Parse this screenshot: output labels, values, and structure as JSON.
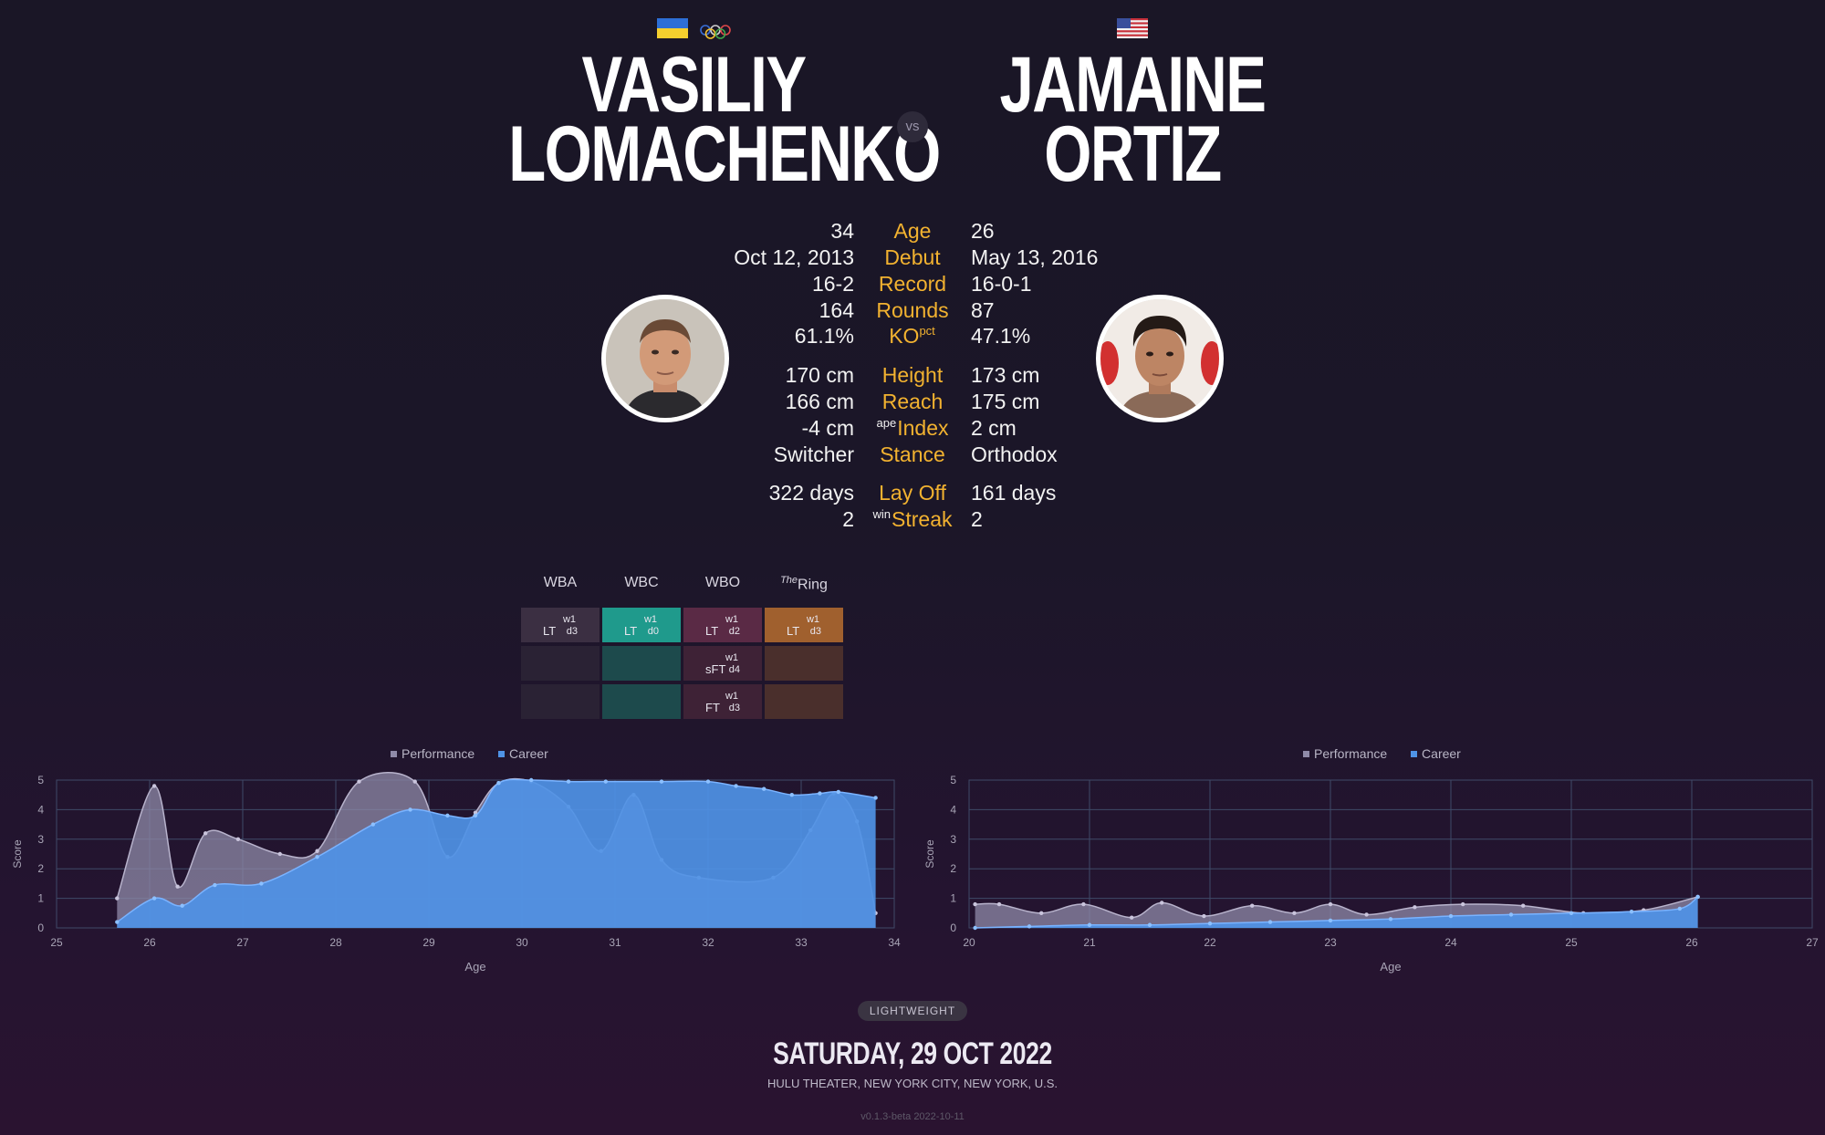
{
  "fighters": {
    "left": {
      "first_name": "VASILIY",
      "last_name": "LOMACHENKO",
      "flag": "ukraine-flag",
      "extra_badge": "olympic-rings",
      "age": "34",
      "debut": "Oct 12, 2013",
      "record": "16-2",
      "rounds": "164",
      "ko_pct": "61.1%",
      "height": "170 cm",
      "reach": "166 cm",
      "ape_index": "-4 cm",
      "stance": "Switcher",
      "lay_off": "322 days",
      "win_streak": "2"
    },
    "right": {
      "first_name": "JAMAINE",
      "last_name": "ORTIZ",
      "flag": "usa-flag",
      "age": "26",
      "debut": "May 13, 2016",
      "record": "16-0-1",
      "rounds": "87",
      "ko_pct": "47.1%",
      "height": "173 cm",
      "reach": "175 cm",
      "ape_index": "2 cm",
      "stance": "Orthodox",
      "lay_off": "161 days",
      "win_streak": "2"
    }
  },
  "vs_label": "vs",
  "labels": {
    "age": "Age",
    "debut": "Debut",
    "record": "Record",
    "rounds": "Rounds",
    "ko": "KO",
    "ko_sup": "pct",
    "height": "Height",
    "reach": "Reach",
    "index": "Index",
    "index_sup": "ape",
    "stance": "Stance",
    "lay_off": "Lay Off",
    "streak": "Streak",
    "streak_sup": "win"
  },
  "belts": {
    "headers": [
      "WBA",
      "WBC",
      "WBO",
      "Ring"
    ],
    "ring_prefix": "The",
    "colors": {
      "wba": "#3b2f42",
      "wbc": "#1f9a8c",
      "wbo": "#5a2a45",
      "ring": "#a0602e"
    },
    "rows": [
      {
        "wba": {
          "div": "LT",
          "w": "w1",
          "d": "d3"
        },
        "wbc": {
          "div": "LT",
          "w": "w1",
          "d": "d0"
        },
        "wbo": {
          "div": "LT",
          "w": "w1",
          "d": "d2"
        },
        "ring": {
          "div": "LT",
          "w": "w1",
          "d": "d3"
        }
      },
      {
        "wbo": {
          "div": "sFT",
          "w": "w1",
          "d": "d4"
        }
      },
      {
        "wbo": {
          "div": "FT",
          "w": "w1",
          "d": "d3"
        }
      }
    ]
  },
  "chart_data": [
    {
      "type": "area",
      "fighter": "VASILIY LOMACHENKO",
      "xlabel": "Age",
      "ylabel": "Score",
      "xlim": [
        25,
        34
      ],
      "ylim": [
        0,
        5
      ],
      "xticks": [
        25,
        26,
        27,
        28,
        29,
        30,
        31,
        32,
        33,
        34
      ],
      "yticks": [
        0,
        1,
        2,
        3,
        4,
        5
      ],
      "legend": [
        "Performance",
        "Career"
      ],
      "legend_position": "top",
      "grid": true,
      "colors": {
        "performance": "#8f8aa8",
        "career": "#4f93e6"
      },
      "series": [
        {
          "name": "Performance",
          "x": [
            25.65,
            26.05,
            26.3,
            26.6,
            26.95,
            27.4,
            27.8,
            28.25,
            28.85,
            29.2,
            29.5,
            29.75,
            30.1,
            30.5,
            30.85,
            31.2,
            31.5,
            31.9,
            32.7,
            33.1,
            33.35,
            33.6,
            33.8
          ],
          "y": [
            1.0,
            4.8,
            1.4,
            3.2,
            3.0,
            2.5,
            2.6,
            4.95,
            4.95,
            2.4,
            3.9,
            4.9,
            4.95,
            4.1,
            2.6,
            4.5,
            2.3,
            1.7,
            1.7,
            3.3,
            4.55,
            3.6,
            0.5
          ]
        },
        {
          "name": "Career",
          "x": [
            25.65,
            26.05,
            26.35,
            26.7,
            27.2,
            27.8,
            28.4,
            28.8,
            29.2,
            29.5,
            29.75,
            30.1,
            30.5,
            30.9,
            31.5,
            32.0,
            32.3,
            32.6,
            32.9,
            33.2,
            33.4,
            33.8
          ],
          "y": [
            0.2,
            1.0,
            0.75,
            1.45,
            1.5,
            2.4,
            3.5,
            4.0,
            3.8,
            3.8,
            4.9,
            5.0,
            4.95,
            4.95,
            4.95,
            4.95,
            4.8,
            4.7,
            4.5,
            4.55,
            4.6,
            4.4
          ]
        }
      ]
    },
    {
      "type": "area",
      "fighter": "JAMAINE ORTIZ",
      "xlabel": "Age",
      "ylabel": "Score",
      "xlim": [
        20,
        27
      ],
      "ylim": [
        0,
        5
      ],
      "xticks": [
        20,
        21,
        22,
        23,
        24,
        25,
        26,
        27
      ],
      "yticks": [
        0,
        1,
        2,
        3,
        4,
        5
      ],
      "legend": [
        "Performance",
        "Career"
      ],
      "legend_position": "top",
      "grid": true,
      "colors": {
        "performance": "#8f8aa8",
        "career": "#4f93e6"
      },
      "series": [
        {
          "name": "Performance",
          "x": [
            20.05,
            20.25,
            20.6,
            20.95,
            21.35,
            21.6,
            21.95,
            22.35,
            22.7,
            23.0,
            23.3,
            23.7,
            24.1,
            24.6,
            25.1,
            25.6,
            26.05
          ],
          "y": [
            0.8,
            0.8,
            0.5,
            0.8,
            0.35,
            0.85,
            0.4,
            0.75,
            0.5,
            0.8,
            0.45,
            0.7,
            0.8,
            0.75,
            0.5,
            0.6,
            1.05
          ]
        },
        {
          "name": "Career",
          "x": [
            20.05,
            20.5,
            21.0,
            21.5,
            22.0,
            22.5,
            23.0,
            23.5,
            24.0,
            24.5,
            25.0,
            25.5,
            25.9,
            26.05
          ],
          "y": [
            0.0,
            0.05,
            0.1,
            0.1,
            0.15,
            0.2,
            0.25,
            0.3,
            0.4,
            0.45,
            0.5,
            0.55,
            0.65,
            1.05
          ]
        }
      ]
    }
  ],
  "footer": {
    "weight_class": "LIGHTWEIGHT",
    "date": "SATURDAY, 29 OCT 2022",
    "venue": "HULU THEATER, NEW YORK CITY, NEW YORK, U.S.",
    "version": "v0.1.3-beta 2022-10-11"
  }
}
